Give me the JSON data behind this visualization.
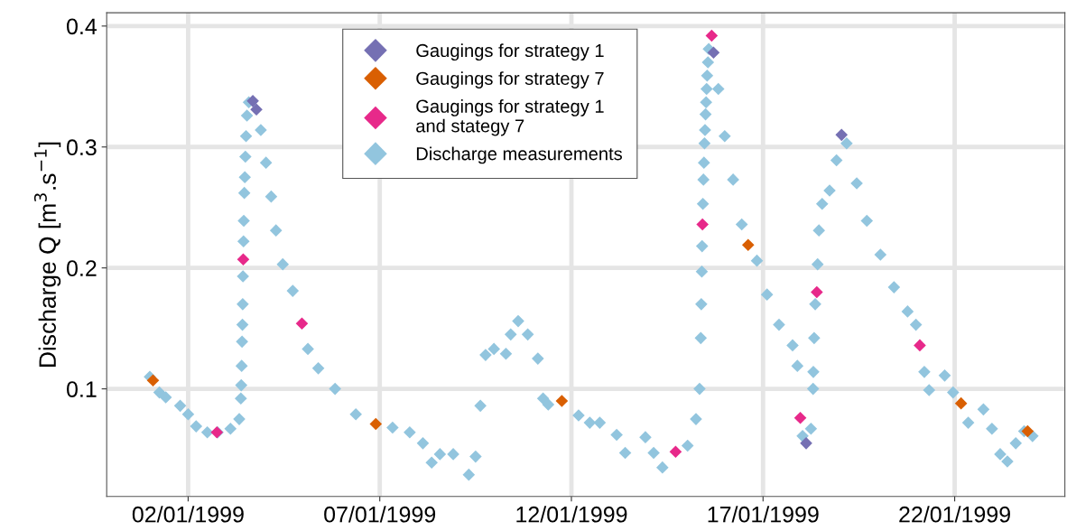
{
  "chart_data": {
    "type": "scatter",
    "ylabel": "Discharge Q [m$^{3}$.s$^{−1}$]",
    "xlim": [
      "1998-12-30T21:00",
      "1999-01-24T21:00"
    ],
    "xticks": [
      {
        "value": "1999-01-02",
        "label": "02/01/1999"
      },
      {
        "value": "1999-01-07",
        "label": "07/01/1999"
      },
      {
        "value": "1999-01-12",
        "label": "12/01/1999"
      },
      {
        "value": "1999-01-17",
        "label": "17/01/1999"
      },
      {
        "value": "1999-01-22",
        "label": "22/01/1999"
      }
    ],
    "ylim": [
      0.011,
      0.411
    ],
    "yticks": [
      0.1,
      0.2,
      0.3,
      0.4
    ],
    "grid": true,
    "legend": "top",
    "marker": "diamond",
    "series": [
      {
        "name": "Gaugings for strategy 1",
        "color": "#7570b3",
        "x": [
          "1999-01-03T16:30",
          "1999-01-03T18:45",
          "1999-01-15T17:00",
          "1999-01-18T03:00",
          "1999-01-19T01:10"
        ],
        "values": [
          0.338,
          0.331,
          0.378,
          0.055,
          0.31
        ]
      },
      {
        "name": "Gaugings for strategy 7",
        "color": "#d95f02",
        "x": [
          "1999-01-01T02:00",
          "1999-01-06T21:30",
          "1999-01-11T18:00",
          "1999-01-16T14:40",
          "1999-01-22T04:00",
          "1999-01-23T21:40"
        ],
        "values": [
          0.107,
          0.071,
          0.09,
          0.219,
          0.088,
          0.065
        ]
      },
      {
        "name": "Gaugings for strategy 1\nand stategy 7",
        "color": "#e7298a",
        "x": [
          "1999-01-02T18:00",
          "1999-01-03T10:30",
          "1999-01-04T23:15",
          "1999-01-14T17:15",
          "1999-01-15T10:05",
          "1999-01-15T15:50",
          "1999-01-17T23:20",
          "1999-01-18T09:40",
          "1999-01-21T02:10"
        ],
        "values": [
          0.064,
          0.207,
          0.154,
          0.048,
          0.236,
          0.392,
          0.076,
          0.18,
          0.136
        ]
      },
      {
        "name": "Discharge measurements",
        "color": "#92c5de",
        "x": [
          "1999-01-01T00:00",
          "1999-01-01T06:00",
          "1999-01-01T10:00",
          "1999-01-01T19:00",
          "1999-01-02T00:00",
          "1999-01-02T05:00",
          "1999-01-02T12:00",
          "1999-01-02T18:30",
          "1999-01-03T02:30",
          "1999-01-03T08:00",
          "1999-01-03T09:00",
          "1999-01-03T09:15",
          "1999-01-03T09:30",
          "1999-01-03T09:45",
          "1999-01-03T10:00",
          "1999-01-03T10:10",
          "1999-01-03T10:20",
          "1999-01-03T10:40",
          "1999-01-03T10:50",
          "1999-01-03T11:10",
          "1999-01-03T11:30",
          "1999-01-03T11:50",
          "1999-01-03T12:15",
          "1999-01-03T12:50",
          "1999-01-03T14:00",
          "1999-01-03T21:30",
          "1999-01-04T00:45",
          "1999-01-04T04:00",
          "1999-01-04T07:00",
          "1999-01-04T11:15",
          "1999-01-04T17:30",
          "1999-01-05T03:00",
          "1999-01-05T09:30",
          "1999-01-05T20:00",
          "1999-01-06T09:00",
          "1999-01-07T08:00",
          "1999-01-07T18:45",
          "1999-01-08T03:00",
          "1999-01-08T08:30",
          "1999-01-08T13:40",
          "1999-01-08T22:00",
          "1999-01-09T07:45",
          "1999-01-09T12:00",
          "1999-01-09T15:00",
          "1999-01-09T18:15",
          "1999-01-09T23:30",
          "1999-01-10T07:00",
          "1999-01-10T10:00",
          "1999-01-10T14:40",
          "1999-01-10T20:40",
          "1999-01-11T03:00",
          "1999-01-11T06:15",
          "1999-01-11T09:30",
          "1999-01-12T04:30",
          "1999-01-12T11:30",
          "1999-01-12T17:45",
          "1999-01-13T04:20",
          "1999-01-13T09:40",
          "1999-01-13T22:20",
          "1999-01-14T03:30",
          "1999-01-14T09:00",
          "1999-01-15T00:45",
          "1999-01-15T06:00",
          "1999-01-15T08:15",
          "1999-01-15T09:00",
          "1999-01-15T09:20",
          "1999-01-15T09:40",
          "1999-01-15T09:50",
          "1999-01-15T10:20",
          "1999-01-15T10:40",
          "1999-01-15T11:00",
          "1999-01-15T11:20",
          "1999-01-15T11:40",
          "1999-01-15T12:00",
          "1999-01-15T12:20",
          "1999-01-15T12:40",
          "1999-01-15T13:00",
          "1999-01-15T13:30",
          "1999-01-15T14:00",
          "1999-01-15T20:00",
          "1999-01-16T00:00",
          "1999-01-16T05:15",
          "1999-01-16T10:40",
          "1999-01-16T20:10",
          "1999-01-17T02:30",
          "1999-01-17T10:00",
          "1999-01-17T18:30",
          "1999-01-17T21:30",
          "1999-01-18T00:45",
          "1999-01-18T06:00",
          "1999-01-18T07:20",
          "1999-01-18T07:30",
          "1999-01-18T08:00",
          "1999-01-18T08:40",
          "1999-01-18T10:10",
          "1999-01-18T11:00",
          "1999-01-18T13:00",
          "1999-01-18T17:40",
          "1999-01-18T22:00",
          "1999-01-19T04:20",
          "1999-01-19T10:40",
          "1999-01-19T17:00",
          "1999-01-20T01:30",
          "1999-01-20T10:00",
          "1999-01-20T18:30",
          "1999-01-20T23:45",
          "1999-01-21T05:00",
          "1999-01-21T08:00",
          "1999-01-21T17:45",
          "1999-01-21T23:00",
          "1999-01-22T08:30",
          "1999-01-22T18:00",
          "1999-01-22T23:20",
          "1999-01-23T04:30",
          "1999-01-23T09:00",
          "1999-01-23T14:15",
          "1999-01-23T19:30",
          "1999-01-24T00:45"
        ],
        "values": [
          0.11,
          0.097,
          0.093,
          0.086,
          0.079,
          0.069,
          0.064,
          0.064,
          0.067,
          0.075,
          0.092,
          0.103,
          0.119,
          0.139,
          0.153,
          0.17,
          0.193,
          0.222,
          0.239,
          0.262,
          0.275,
          0.292,
          0.309,
          0.326,
          0.337,
          0.314,
          0.287,
          0.259,
          0.231,
          0.203,
          0.181,
          0.133,
          0.117,
          0.1,
          0.079,
          0.068,
          0.064,
          0.055,
          0.039,
          0.046,
          0.046,
          0.029,
          0.044,
          0.086,
          0.128,
          0.133,
          0.129,
          0.145,
          0.156,
          0.145,
          0.125,
          0.092,
          0.087,
          0.078,
          0.072,
          0.072,
          0.062,
          0.047,
          0.06,
          0.047,
          0.035,
          0.053,
          0.075,
          0.1,
          0.142,
          0.17,
          0.197,
          0.218,
          0.253,
          0.273,
          0.287,
          0.303,
          0.314,
          0.327,
          0.337,
          0.348,
          0.359,
          0.37,
          0.381,
          0.348,
          0.309,
          0.273,
          0.236,
          0.206,
          0.178,
          0.153,
          0.136,
          0.119,
          0.061,
          0.067,
          0.1,
          0.114,
          0.142,
          0.17,
          0.203,
          0.231,
          0.253,
          0.264,
          0.289,
          0.303,
          0.27,
          0.239,
          0.211,
          0.184,
          0.164,
          0.153,
          0.114,
          0.099,
          0.111,
          0.097,
          0.072,
          0.083,
          0.067,
          0.046,
          0.04,
          0.055,
          0.065,
          0.061
        ]
      }
    ]
  }
}
